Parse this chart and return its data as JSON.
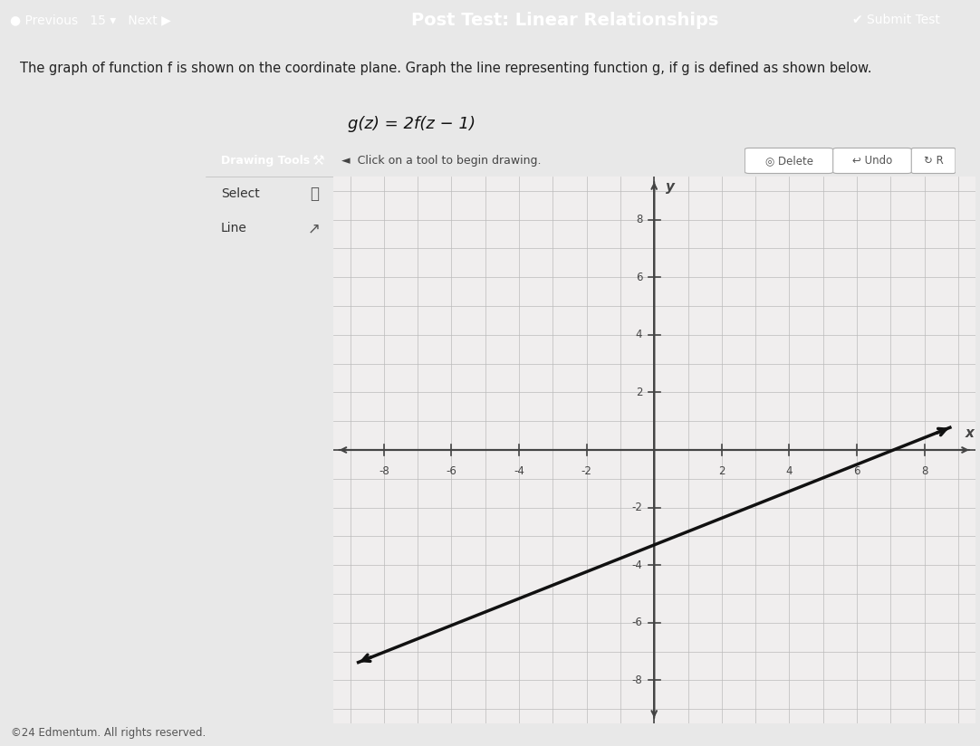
{
  "title": "Post Test: Linear Relationships",
  "question_text": "The graph of function f is shown on the coordinate plane. Graph the line representing function g, if g is defined as shown below.",
  "formula": "g(z) = 2f(z − 1)",
  "header_bg": "#3a8fd4",
  "header_text": "#ffffff",
  "page_bg": "#e8e8e8",
  "content_bg": "#e8e8e8",
  "graph_bg": "#f0eeee",
  "grid_color": "#bbbbbb",
  "axis_color": "#444444",
  "line_color": "#111111",
  "toolbar_header_bg": "#3a8fd4",
  "toolbar_body_bg": "#dce6f0",
  "toolbar_btn_bg": "#dce6f0",
  "toolbar_header_text": "#ffffff",
  "notify_bg": "#dce6f0",
  "notify_text": "#444444",
  "btn_bg": "#e0e0e0",
  "line_x1": -8.8,
  "line_y1": -7.4,
  "line_x2": 8.8,
  "line_y2": 0.8,
  "xlim": [
    -9.5,
    9.5
  ],
  "ylim": [
    -9.5,
    9.5
  ],
  "xticks": [
    -8,
    -6,
    -4,
    -2,
    2,
    4,
    6,
    8
  ],
  "yticks": [
    -8,
    -6,
    -4,
    -2,
    2,
    4,
    6,
    8
  ],
  "footer_text": "©24 Edmentum. All rights reserved.",
  "nav_prev": "Previous",
  "nav_next": "Next",
  "nav_num": "15",
  "btn_submit": "Submit Test"
}
